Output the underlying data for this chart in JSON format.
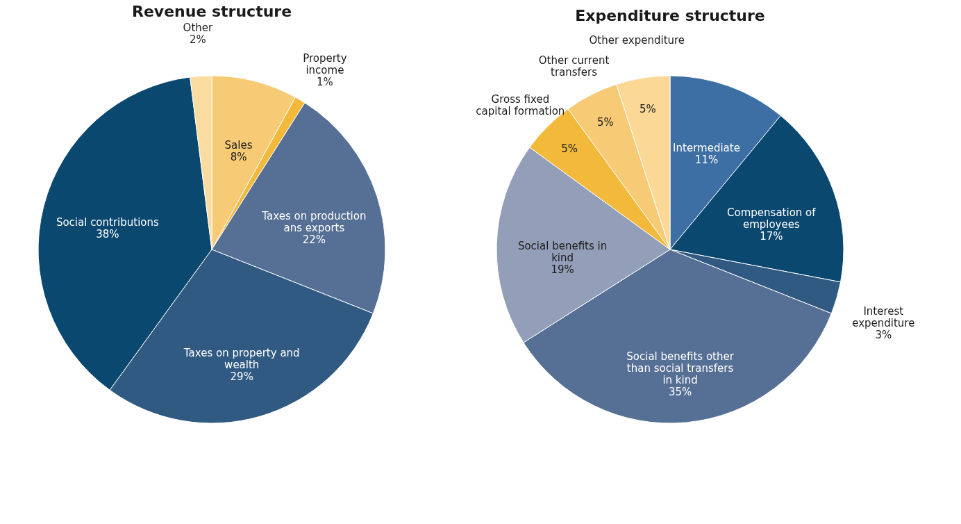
{
  "chart_data": [
    {
      "type": "pie",
      "title": "Revenue structure",
      "categories": [
        "Sales",
        "Property income",
        "Taxes  on production ans exports",
        "Taxes on property and wealth",
        "Social contributions",
        "Other"
      ],
      "values": [
        8,
        1,
        22,
        29,
        38,
        2
      ],
      "value_labels": [
        "8%",
        "1%",
        "22%",
        "29%",
        "38%",
        "2%"
      ],
      "colors": [
        "#f7ca75",
        "#f3b93b",
        "#566f95",
        "#305a82",
        "#0a4870",
        "#fbdca0"
      ]
    },
    {
      "type": "pie",
      "title": "Expenditure structure",
      "categories": [
        "Intermediate",
        "Compensation of employees",
        "Interest expenditure",
        "Social benefits other than social transfers in kind",
        "Social benefits in kind",
        "Gross fixed capital formation",
        "Other current transfers",
        "Other expenditure"
      ],
      "values": [
        11,
        17,
        3,
        35,
        19,
        5,
        5,
        5
      ],
      "value_labels": [
        "11%",
        "17%",
        "3%",
        "35%",
        "19%",
        "5%",
        "5%",
        "5%"
      ],
      "colors": [
        "#3d6fa5",
        "#0a4870",
        "#305a82",
        "#566f95",
        "#939fb8",
        "#f3b93b",
        "#f7ca75",
        "#fbd896"
      ]
    }
  ]
}
